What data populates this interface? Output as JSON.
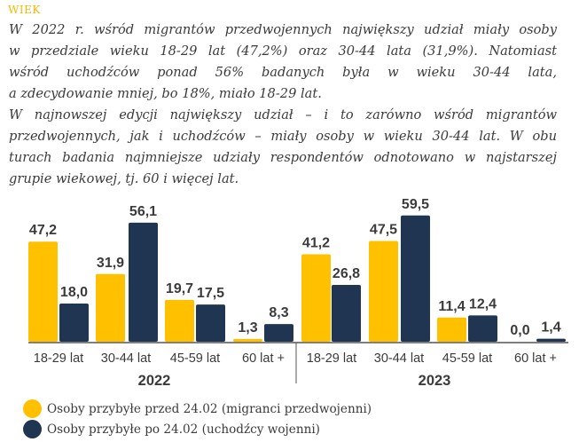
{
  "title": "WIEK",
  "paragraph_lines": [
    "W 2022 r. wśród migrantów przedwojennych największy udział miały osoby",
    "w przedziale wieku 18-29 lat (47,2%) oraz 30-44 lata (31,9%). Natomiast",
    "wśród uchodźców ponad 56% badanych była w wieku 30-44 lata,",
    "a zdecydowanie mniej, bo 18%, miało 18-29 lat.",
    "W najnowszej edycji największy udział – i to zarówno wśród migrantów",
    "przedwojennych, jak i uchodźców – miały osoby w wieku 30-44 lat. W obu",
    "turach badania najmniejsze udziały respondentów odnotowano w najstarszej",
    "grupie wiekowej, tj. 60 i więcej lat."
  ],
  "paragraph_last_lines": [
    3,
    7
  ],
  "chart_data": {
    "type": "bar",
    "groups": [
      {
        "year": "2022",
        "categories": [
          "18-29 lat",
          "30-44 lat",
          "45-59 lat",
          "60 lat +"
        ],
        "series": [
          {
            "name": "Osoby przybyłe przed 24.02 (migranci przedwojenni)",
            "values": [
              47.2,
              31.9,
              19.7,
              1.3
            ],
            "labels": [
              "47,2",
              "31,9",
              "19,7",
              "1,3"
            ]
          },
          {
            "name": "Osoby przybyłe po 24.02 (uchodźcy wojenni)",
            "values": [
              18.0,
              56.1,
              17.5,
              8.3
            ],
            "labels": [
              "18,0",
              "56,1",
              "17,5",
              "8,3"
            ]
          }
        ]
      },
      {
        "year": "2023",
        "categories": [
          "18-29 lat",
          "30-44 lat",
          "45-59 lat",
          "60 lat +"
        ],
        "series": [
          {
            "name": "Osoby przybyłe przed 24.02 (migranci przedwojenni)",
            "values": [
              41.2,
              47.5,
              11.4,
              0.0
            ],
            "labels": [
              "41,2",
              "47,5",
              "11,4",
              "0,0"
            ]
          },
          {
            "name": "Osoby przybyłe po 24.02 (uchodźcy wojenni)",
            "values": [
              26.8,
              59.5,
              12.4,
              1.4
            ],
            "labels": [
              "26,8",
              "59,5",
              "12,4",
              "1,4"
            ]
          }
        ]
      }
    ],
    "legend": [
      {
        "label": "Osoby przybyłe przed 24.02 (migranci przedwojenni)",
        "color": "#FFC000"
      },
      {
        "label": "Osoby przybyłe po 24.02 (uchodźcy wojenni)",
        "color": "#1F3552"
      }
    ],
    "legend_position": "bottom-left",
    "unit": "%",
    "ylim": [
      0,
      60
    ]
  }
}
